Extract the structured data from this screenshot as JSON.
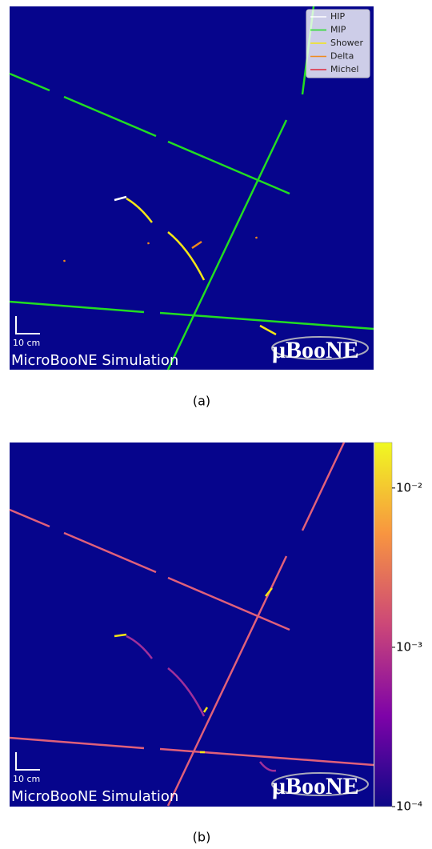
{
  "panels": [
    {
      "legend": [
        {
          "name": "HIP",
          "color": "#ffffff"
        },
        {
          "name": "MIP",
          "color": "#22dd22"
        },
        {
          "name": "Shower",
          "color": "#f4e516"
        },
        {
          "name": "Delta",
          "color": "#f08a1c"
        },
        {
          "name": "Michel",
          "color": "#e0283a"
        }
      ],
      "scale_label": "10 cm",
      "watermark": "MicroBooNE Simulation",
      "logo": "μBooNE",
      "caption": "(a)"
    },
    {
      "scale_label": "10 cm",
      "watermark": "MicroBooNE Simulation",
      "logo": "μBooNE",
      "caption": "(b)",
      "colorbar": {
        "scale": "log",
        "lim": [
          0.0001,
          0.0193
        ],
        "ticks": [
          {
            "value": 0.01,
            "label": "10⁻²"
          },
          {
            "value": 0.001,
            "label": "10⁻³"
          },
          {
            "value": 0.0001,
            "label": "10⁻⁴"
          }
        ],
        "colors": [
          "#0d0887",
          "#7e03a8",
          "#cc4778",
          "#f89540",
          "#f0f921"
        ]
      }
    }
  ]
}
